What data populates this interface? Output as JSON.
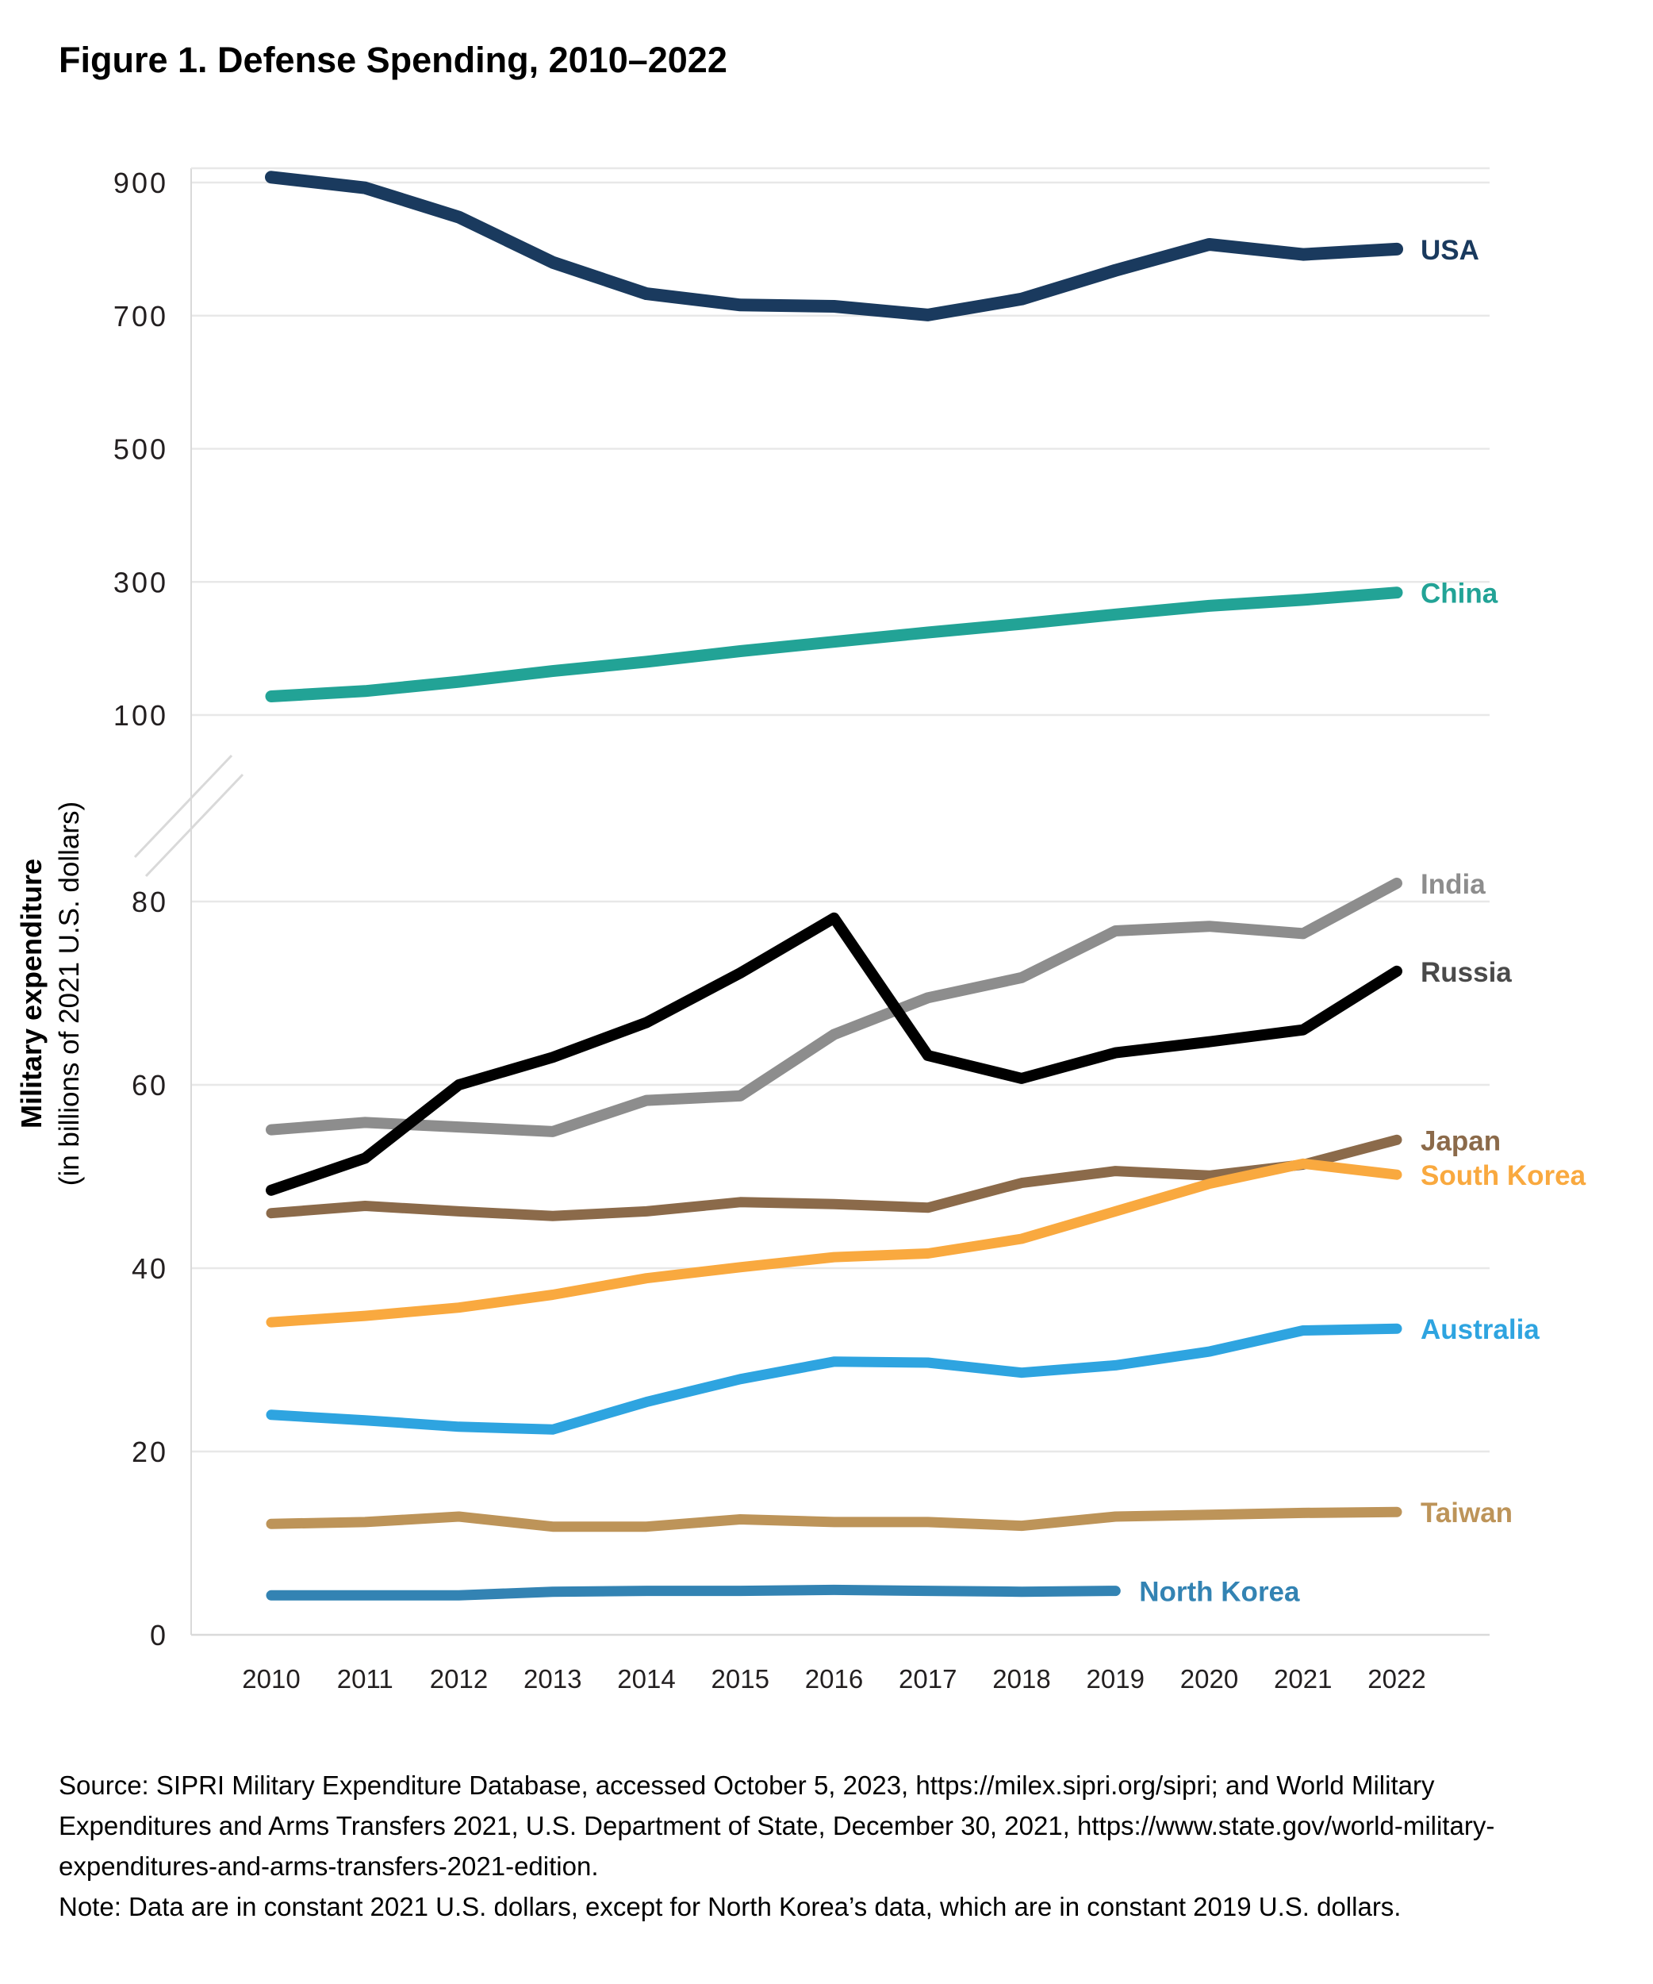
{
  "figure": {
    "title": "Figure 1. Defense Spending, 2010–2022",
    "y_axis_title": "Military expenditure",
    "y_axis_subtitle": "(in billions of 2021 U.S. dollars)",
    "source_lines": [
      "Source: SIPRI Military Expenditure Database, accessed October 5, 2023, https://milex.sipri.org/sipri; and World Military",
      "Expenditures and Arms Transfers 2021, U.S. Department of State, December 30, 2021, https://www.state.gov/world-military-",
      "expenditures-and-arms-transfers-2021-edition."
    ],
    "note_line": "Note: Data are in constant 2021 U.S. dollars, except for North Korea’s data, which are in constant 2019 U.S. dollars."
  },
  "colors": {
    "grid": "#e8e8e8",
    "axis_border": "#d9d9d9",
    "tick_text": "#231f20",
    "break_mark": "#d9d9d9"
  },
  "chart_data": {
    "type": "line",
    "title": "Figure 1. Defense Spending, 2010–2022",
    "xlabel": "",
    "ylabel": "Military expenditure (in billions of 2021 U.S. dollars)",
    "x": [
      2010,
      2011,
      2012,
      2013,
      2014,
      2015,
      2016,
      2017,
      2018,
      2019,
      2020,
      2021,
      2022
    ],
    "x_tick_labels": [
      "2010",
      "2011",
      "2012",
      "2013",
      "2014",
      "2015",
      "2016",
      "2017",
      "2018",
      "2019",
      "2020",
      "2021",
      "2022"
    ],
    "grid": true,
    "legend_position": "line-end-labels-right",
    "y_axis": {
      "broken": true,
      "upper_segment_range": [
        100,
        930
      ],
      "lower_segment_range": [
        0,
        83
      ],
      "upper_ticks": [
        900,
        700,
        500,
        300,
        100
      ],
      "lower_ticks": [
        80,
        60,
        40,
        20,
        0
      ]
    },
    "series": [
      {
        "name": "USA",
        "label": "USA",
        "color": "#1a3a5e",
        "label_color": "#1a3a5e",
        "width": 16,
        "values": [
          908,
          892,
          848,
          780,
          733,
          716,
          714,
          701,
          725,
          768,
          807,
          792,
          800
        ]
      },
      {
        "name": "China",
        "label": "China",
        "color": "#22a396",
        "label_color": "#22a396",
        "width": 15,
        "values": [
          128,
          136,
          150,
          166,
          180,
          196,
          210,
          224,
          237,
          251,
          264,
          273,
          284
        ]
      },
      {
        "name": "India",
        "label": "India",
        "color": "#8d8d8d",
        "label_color": "#8d8d8d",
        "width": 14,
        "values": [
          55.1,
          55.9,
          55.4,
          54.9,
          58.3,
          58.8,
          65.5,
          69.5,
          71.7,
          76.8,
          77.3,
          76.5,
          82
        ]
      },
      {
        "name": "Russia",
        "label": "Russia",
        "color": "#000000",
        "label_color": "#4a4a4a",
        "width": 14,
        "values": [
          48.5,
          52,
          60,
          63,
          66.8,
          72.2,
          78.2,
          63.2,
          60.7,
          63.5,
          64.7,
          66,
          72.4
        ]
      },
      {
        "name": "Japan",
        "label": "Japan",
        "color": "#8b6a4a",
        "label_color": "#8b6a4a",
        "width": 13,
        "values": [
          46.0,
          46.8,
          46.2,
          45.7,
          46.2,
          47.2,
          47.0,
          46.6,
          49.3,
          50.6,
          50.1,
          51.3,
          54.0
        ]
      },
      {
        "name": "South Korea",
        "label": "South Korea",
        "color": "#f9a93f",
        "label_color": "#f9a93f",
        "width": 13,
        "values": [
          34.1,
          34.8,
          35.7,
          37.1,
          38.9,
          40.1,
          41.2,
          41.6,
          43.2,
          46.2,
          49.2,
          51.4,
          50.2
        ]
      },
      {
        "name": "Australia",
        "label": "Australia",
        "color": "#2ea4e0",
        "label_color": "#2ea4e0",
        "width": 13,
        "values": [
          24.0,
          23.4,
          22.7,
          22.4,
          25.4,
          27.9,
          29.8,
          29.7,
          28.6,
          29.4,
          30.9,
          33.2,
          33.4
        ]
      },
      {
        "name": "Taiwan",
        "label": "Taiwan",
        "color": "#bd9459",
        "label_color": "#bd9459",
        "width": 13,
        "values": [
          12.1,
          12.3,
          12.9,
          11.8,
          11.8,
          12.6,
          12.3,
          12.3,
          11.9,
          12.9,
          13.1,
          13.3,
          13.4
        ]
      },
      {
        "name": "North Korea",
        "label": "North Korea",
        "color": "#3383b3",
        "label_color": "#3383b3",
        "width": 13,
        "values": [
          4.3,
          4.3,
          4.3,
          4.7,
          4.8,
          4.8,
          4.9,
          4.8,
          4.7,
          4.8,
          null,
          null,
          null
        ]
      }
    ]
  }
}
